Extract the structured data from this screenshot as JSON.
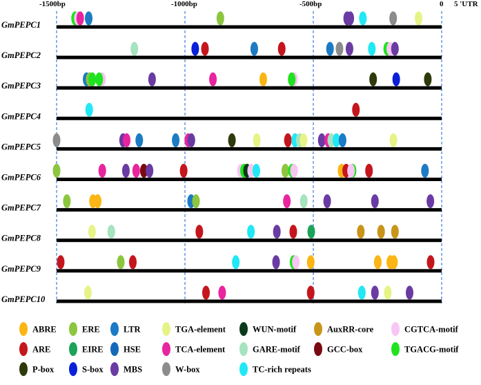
{
  "axis": {
    "ticks": [
      {
        "label": "-1500bp",
        "pos": -1500
      },
      {
        "label": "-1000bp",
        "pos": -1000
      },
      {
        "label": "-500bp",
        "pos": -500
      },
      {
        "label": "0",
        "pos": 0
      }
    ],
    "utr_label": "5 'UTR",
    "dashed_positions": [
      -1500,
      -1000,
      -500,
      0
    ]
  },
  "colors": {
    "ABRE": "#FBB514",
    "ARE": "#C4161C",
    "P-box": "#2E3A0C",
    "ERE": "#8CC63F",
    "EIRE": "#1BA35A",
    "S-box": "#0A1FD8",
    "LTR": "#1C7BC4",
    "HSE": "#1669B8",
    "MBS": "#6A3BA3",
    "TGA-element": "#E6F487",
    "TCA-element": "#E8259E",
    "W-box": "#8C8C8C",
    "WUN-motif": "#0B3A1A",
    "GARE-motif": "#A6E3BF",
    "TC-rich repeats": "#22E8F5",
    "AuxRR-core": "#C8951A",
    "GCC-box": "#7A0A12",
    "CGTCA-motif": "#F8C6F2",
    "TGACG-motif": "#1FE31F"
  },
  "genes": [
    {
      "name": "GmPEPC1",
      "elements": [
        {
          "pos": -1428,
          "type": "TGACG-motif"
        },
        {
          "pos": -1417,
          "type": "CGTCA-motif"
        },
        {
          "pos": -1408,
          "type": "TCA-element"
        },
        {
          "pos": -1375,
          "type": "LTR"
        },
        {
          "pos": -862,
          "type": "ERE"
        },
        {
          "pos": -368,
          "type": "MBS"
        },
        {
          "pos": -356,
          "type": "MBS"
        },
        {
          "pos": -307,
          "type": "TC-rich repeats"
        },
        {
          "pos": -189,
          "type": "W-box"
        },
        {
          "pos": -90,
          "type": "TGA-element"
        }
      ]
    },
    {
      "name": "GmPEPC2",
      "elements": [
        {
          "pos": -1197,
          "type": "GARE-motif"
        },
        {
          "pos": -960,
          "type": "S-box"
        },
        {
          "pos": -922,
          "type": "ARE"
        },
        {
          "pos": -730,
          "type": "LTR"
        },
        {
          "pos": -623,
          "type": "ARE"
        },
        {
          "pos": -435,
          "type": "LTR"
        },
        {
          "pos": -398,
          "type": "W-box"
        },
        {
          "pos": -359,
          "type": "MBS"
        },
        {
          "pos": -272,
          "type": "TC-rich repeats"
        },
        {
          "pos": -212,
          "type": "TGACG-motif"
        },
        {
          "pos": -200,
          "type": "CGTCA-motif"
        },
        {
          "pos": -182,
          "type": "MBS"
        }
      ]
    },
    {
      "name": "GmPEPC3",
      "elements": [
        {
          "pos": -1383,
          "type": "LTR"
        },
        {
          "pos": -1371,
          "type": "ERE"
        },
        {
          "pos": -1361,
          "type": "TGACG-motif"
        },
        {
          "pos": -1323,
          "type": "CGTCA-motif"
        },
        {
          "pos": -1334,
          "type": "TGACG-motif"
        },
        {
          "pos": -1128,
          "type": "MBS"
        },
        {
          "pos": -891,
          "type": "TCA-element"
        },
        {
          "pos": -695,
          "type": "ABRE"
        },
        {
          "pos": -575,
          "type": "CGTCA-motif"
        },
        {
          "pos": -584,
          "type": "TGACG-motif"
        },
        {
          "pos": -267,
          "type": "P-box"
        },
        {
          "pos": -177,
          "type": "S-box"
        },
        {
          "pos": -54,
          "type": "P-box"
        }
      ]
    },
    {
      "name": "GmPEPC4",
      "elements": [
        {
          "pos": -1373,
          "type": "TC-rich repeats"
        },
        {
          "pos": -334,
          "type": "ARE"
        }
      ]
    },
    {
      "name": "GmPEPC5",
      "elements": [
        {
          "pos": -1500,
          "type": "W-box"
        },
        {
          "pos": -1241,
          "type": "MBS"
        },
        {
          "pos": -1227,
          "type": "TCA-element"
        },
        {
          "pos": -1178,
          "type": "LTR"
        },
        {
          "pos": -1036,
          "type": "LTR"
        },
        {
          "pos": -987,
          "type": "TCA-element"
        },
        {
          "pos": -975,
          "type": "MBS"
        },
        {
          "pos": -817,
          "type": "P-box"
        },
        {
          "pos": -720,
          "type": "TGA-element"
        },
        {
          "pos": -599,
          "type": "ARE"
        },
        {
          "pos": -571,
          "type": "TC-rich repeats"
        },
        {
          "pos": -553,
          "type": "GARE-motif"
        },
        {
          "pos": -538,
          "type": "TGA-element"
        },
        {
          "pos": -467,
          "type": "MBS"
        },
        {
          "pos": -442,
          "type": "TCA-element"
        },
        {
          "pos": -430,
          "type": "GARE-motif"
        },
        {
          "pos": -410,
          "type": "TC-rich repeats"
        },
        {
          "pos": -386,
          "type": "LTR"
        },
        {
          "pos": -188,
          "type": "TGA-element"
        }
      ]
    },
    {
      "name": "GmPEPC6",
      "elements": [
        {
          "pos": -1500,
          "type": "ERE"
        },
        {
          "pos": -1322,
          "type": "TCA-element"
        },
        {
          "pos": -1230,
          "type": "MBS"
        },
        {
          "pos": -1190,
          "type": "TCA-element"
        },
        {
          "pos": -1160,
          "type": "GCC-box"
        },
        {
          "pos": -1138,
          "type": "MBS"
        },
        {
          "pos": -1005,
          "type": "ARE"
        },
        {
          "pos": -782,
          "type": "CGTCA-motif"
        },
        {
          "pos": -770,
          "type": "TGACG-motif"
        },
        {
          "pos": -758,
          "type": "WUN-motif"
        },
        {
          "pos": -742,
          "type": "CGTCA-motif"
        },
        {
          "pos": -722,
          "type": "TC-rich repeats"
        },
        {
          "pos": -609,
          "type": "ERE"
        },
        {
          "pos": -583,
          "type": "TGACG-motif"
        },
        {
          "pos": -575,
          "type": "CGTCA-motif"
        },
        {
          "pos": -390,
          "type": "ABRE"
        },
        {
          "pos": -372,
          "type": "ARE"
        },
        {
          "pos": -347,
          "type": "TGACG-motif"
        },
        {
          "pos": -353,
          "type": "CGTCA-motif"
        },
        {
          "pos": -283,
          "type": "ARE"
        },
        {
          "pos": -65,
          "type": "LTR"
        }
      ]
    },
    {
      "name": "GmPEPC7",
      "elements": [
        {
          "pos": -1460,
          "type": "ERE"
        },
        {
          "pos": -1358,
          "type": "ABRE"
        },
        {
          "pos": -1340,
          "type": "ABRE"
        },
        {
          "pos": -976,
          "type": "LTR"
        },
        {
          "pos": -957,
          "type": "ERE"
        },
        {
          "pos": -603,
          "type": "TCA-element"
        },
        {
          "pos": -537,
          "type": "GARE-motif"
        },
        {
          "pos": -446,
          "type": "MBS"
        },
        {
          "pos": -260,
          "type": "MBS"
        },
        {
          "pos": -44,
          "type": "MBS"
        }
      ]
    },
    {
      "name": "GmPEPC8",
      "elements": [
        {
          "pos": -1362,
          "type": "TGA-element"
        },
        {
          "pos": -1287,
          "type": "GARE-motif"
        },
        {
          "pos": -944,
          "type": "ARE"
        },
        {
          "pos": -743,
          "type": "TC-rich repeats"
        },
        {
          "pos": -642,
          "type": "MBS"
        },
        {
          "pos": -578,
          "type": "ARE"
        },
        {
          "pos": -508,
          "type": "EIRE"
        },
        {
          "pos": -315,
          "type": "AuxRR-core"
        },
        {
          "pos": -236,
          "type": "AuxRR-core"
        },
        {
          "pos": -182,
          "type": "AuxRR-core"
        }
      ]
    },
    {
      "name": "GmPEPC9",
      "elements": [
        {
          "pos": -1484,
          "type": "ARE"
        },
        {
          "pos": -1250,
          "type": "ERE"
        },
        {
          "pos": -1203,
          "type": "ARE"
        },
        {
          "pos": -802,
          "type": "TC-rich repeats"
        },
        {
          "pos": -645,
          "type": "MBS"
        },
        {
          "pos": -577,
          "type": "TGACG-motif"
        },
        {
          "pos": -568,
          "type": "CGTCA-motif"
        },
        {
          "pos": -510,
          "type": "ABRE"
        },
        {
          "pos": -249,
          "type": "ABRE"
        },
        {
          "pos": -200,
          "type": "ABRE"
        },
        {
          "pos": -186,
          "type": "ABRE"
        },
        {
          "pos": -43,
          "type": "ARE"
        }
      ]
    },
    {
      "name": "GmPEPC10",
      "elements": [
        {
          "pos": -1378,
          "type": "TGA-element"
        },
        {
          "pos": -918,
          "type": "ARE"
        },
        {
          "pos": -855,
          "type": "TCA-element"
        },
        {
          "pos": -510,
          "type": "ARE"
        },
        {
          "pos": -311,
          "type": "TC-rich repeats"
        },
        {
          "pos": -260,
          "type": "MBS"
        },
        {
          "pos": -210,
          "type": "TGA-element"
        },
        {
          "pos": -125,
          "type": "MBS"
        }
      ]
    }
  ],
  "legend": [
    {
      "label": "ABRE",
      "type": "ABRE"
    },
    {
      "label": "ERE",
      "type": "ERE"
    },
    {
      "label": "LTR",
      "type": "LTR"
    },
    {
      "label": "TGA-element",
      "type": "TGA-element"
    },
    {
      "label": "WUN-motif",
      "type": "WUN-motif"
    },
    {
      "label": "AuxRR-core",
      "type": "AuxRR-core"
    },
    {
      "label": "CGTCA-motif",
      "type": "CGTCA-motif"
    },
    {
      "label": "ARE",
      "type": "ARE"
    },
    {
      "label": "EIRE",
      "type": "EIRE"
    },
    {
      "label": "HSE",
      "type": "HSE"
    },
    {
      "label": "TCA-element",
      "type": "TCA-element"
    },
    {
      "label": "GARE-motif",
      "type": "GARE-motif"
    },
    {
      "label": "GCC-box",
      "type": "GCC-box"
    },
    {
      "label": "TGACG-motif",
      "type": "TGACG-motif"
    },
    {
      "label": "P-box",
      "type": "P-box"
    },
    {
      "label": "S-box",
      "type": "S-box"
    },
    {
      "label": "MBS",
      "type": "MBS"
    },
    {
      "label": "W-box",
      "type": "W-box"
    },
    {
      "label": "TC-rich repeats",
      "type": "TC-rich repeats"
    }
  ]
}
